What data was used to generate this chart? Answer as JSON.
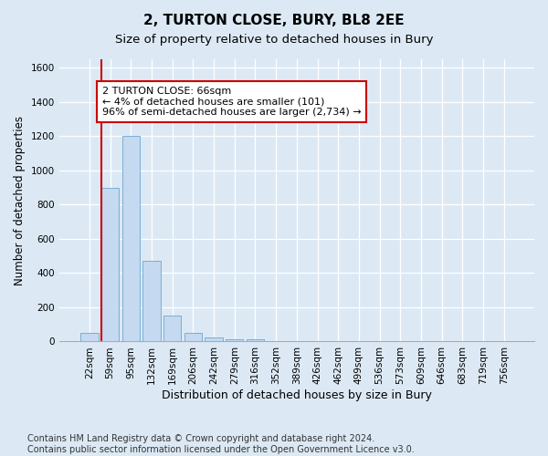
{
  "title": "2, TURTON CLOSE, BURY, BL8 2EE",
  "subtitle": "Size of property relative to detached houses in Bury",
  "xlabel": "Distribution of detached houses by size in Bury",
  "ylabel": "Number of detached properties",
  "bar_color": "#c5d9f0",
  "bar_edge_color": "#7aafd4",
  "background_color": "#dce9f5",
  "plot_bg_color": "#dce9f5",
  "grid_color": "#ffffff",
  "categories": [
    "22sqm",
    "59sqm",
    "95sqm",
    "132sqm",
    "169sqm",
    "206sqm",
    "242sqm",
    "279sqm",
    "316sqm",
    "352sqm",
    "389sqm",
    "426sqm",
    "462sqm",
    "499sqm",
    "536sqm",
    "573sqm",
    "609sqm",
    "646sqm",
    "683sqm",
    "719sqm",
    "756sqm"
  ],
  "values": [
    50,
    900,
    1200,
    470,
    150,
    50,
    25,
    15,
    15,
    5,
    3,
    0,
    0,
    0,
    0,
    0,
    0,
    0,
    0,
    0,
    0
  ],
  "ylim": [
    0,
    1650
  ],
  "yticks": [
    0,
    200,
    400,
    600,
    800,
    1000,
    1200,
    1400,
    1600
  ],
  "annotation_text": "2 TURTON CLOSE: 66sqm\n← 4% of detached houses are smaller (101)\n96% of semi-detached houses are larger (2,734) →",
  "annotation_box_color": "#ffffff",
  "annotation_box_edge": "#cc0000",
  "property_line_color": "#cc0000",
  "footer": "Contains HM Land Registry data © Crown copyright and database right 2024.\nContains public sector information licensed under the Open Government Licence v3.0.",
  "title_fontsize": 11,
  "subtitle_fontsize": 9.5,
  "xlabel_fontsize": 9,
  "ylabel_fontsize": 8.5,
  "tick_fontsize": 7.5,
  "annotation_fontsize": 8,
  "footer_fontsize": 7
}
